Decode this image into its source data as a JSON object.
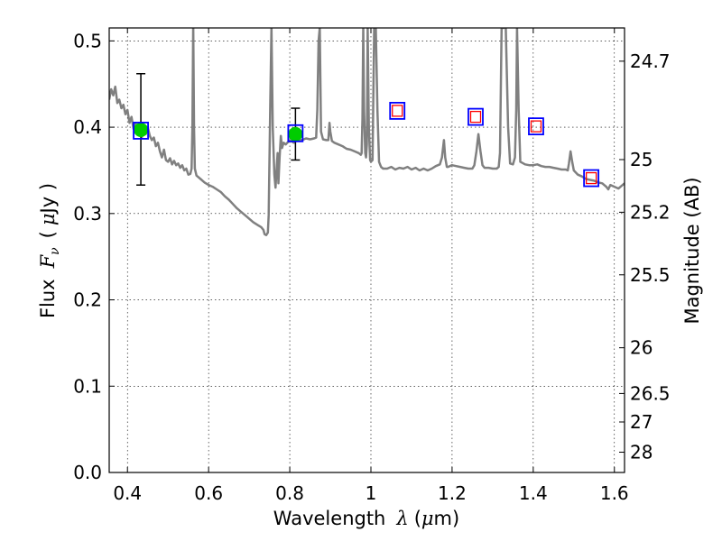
{
  "chart_data": {
    "type": "scatter",
    "xlabel": "Wavelength",
    "xlabel_symbol": "λ",
    "xlabel_unit_prefix": "(",
    "xlabel_unit_mu": "μ",
    "xlabel_unit_suffix": "m)",
    "ylabel_prefix": "Flux",
    "ylabel_symbol": "F",
    "ylabel_sub": "ν",
    "ylabel_unit_open": "(",
    "ylabel_unit_mu": "μ",
    "ylabel_unit_rest": "Jy )",
    "right_ylabel": "Magnitude (AB)",
    "xlim": [
      0.355,
      1.625
    ],
    "ylim": [
      0.0,
      0.515
    ],
    "grid": true,
    "x_ticks": [
      {
        "value": 0.4,
        "label": "0.4"
      },
      {
        "value": 0.6,
        "label": "0.6"
      },
      {
        "value": 0.8,
        "label": "0.8"
      },
      {
        "value": 1.0,
        "label": "1"
      },
      {
        "value": 1.2,
        "label": "1.2"
      },
      {
        "value": 1.4,
        "label": "1.4"
      },
      {
        "value": 1.6,
        "label": "1.6"
      }
    ],
    "y_ticks": [
      {
        "value": 0.0,
        "label": "0.0"
      },
      {
        "value": 0.1,
        "label": "0.1"
      },
      {
        "value": 0.2,
        "label": "0.2"
      },
      {
        "value": 0.3,
        "label": "0.3"
      },
      {
        "value": 0.4,
        "label": "0.4"
      },
      {
        "value": 0.5,
        "label": "0.5"
      }
    ],
    "right_ticks": [
      {
        "flux": 0.4765,
        "label": "24.7"
      },
      {
        "flux": 0.3625,
        "label": "25"
      },
      {
        "flux": 0.3015,
        "label": "25.2"
      },
      {
        "flux": 0.229,
        "label": "25.5"
      },
      {
        "flux": 0.1445,
        "label": "26"
      },
      {
        "flux": 0.0915,
        "label": "26.5"
      },
      {
        "flux": 0.0585,
        "label": "27"
      },
      {
        "flux": 0.0235,
        "label": "28"
      }
    ],
    "series": [
      {
        "kind": "model-spectrum",
        "color": "#808080",
        "points": [
          [
            0.355,
            0.432
          ],
          [
            0.36,
            0.444
          ],
          [
            0.365,
            0.437
          ],
          [
            0.37,
            0.447
          ],
          [
            0.375,
            0.428
          ],
          [
            0.38,
            0.432
          ],
          [
            0.385,
            0.422
          ],
          [
            0.39,
            0.426
          ],
          [
            0.395,
            0.415
          ],
          [
            0.4,
            0.42
          ],
          [
            0.405,
            0.405
          ],
          [
            0.41,
            0.412
          ],
          [
            0.415,
            0.398
          ],
          [
            0.42,
            0.405
          ],
          [
            0.425,
            0.392
          ],
          [
            0.43,
            0.398
          ],
          [
            0.435,
            0.388
          ],
          [
            0.44,
            0.395
          ],
          [
            0.445,
            0.392
          ],
          [
            0.45,
            0.4
          ],
          [
            0.455,
            0.39
          ],
          [
            0.46,
            0.385
          ],
          [
            0.465,
            0.388
          ],
          [
            0.47,
            0.378
          ],
          [
            0.475,
            0.382
          ],
          [
            0.48,
            0.372
          ],
          [
            0.485,
            0.365
          ],
          [
            0.49,
            0.374
          ],
          [
            0.495,
            0.362
          ],
          [
            0.5,
            0.36
          ],
          [
            0.505,
            0.364
          ],
          [
            0.51,
            0.357
          ],
          [
            0.515,
            0.361
          ],
          [
            0.52,
            0.356
          ],
          [
            0.525,
            0.358
          ],
          [
            0.53,
            0.353
          ],
          [
            0.535,
            0.356
          ],
          [
            0.54,
            0.35
          ],
          [
            0.545,
            0.352
          ],
          [
            0.55,
            0.345
          ],
          [
            0.555,
            0.346
          ],
          [
            0.558,
            0.352
          ],
          [
            0.56,
            0.4
          ],
          [
            0.562,
            0.52
          ],
          [
            0.564,
            0.4
          ],
          [
            0.566,
            0.352
          ],
          [
            0.57,
            0.344
          ],
          [
            0.58,
            0.34
          ],
          [
            0.59,
            0.336
          ],
          [
            0.6,
            0.333
          ],
          [
            0.61,
            0.331
          ],
          [
            0.62,
            0.328
          ],
          [
            0.63,
            0.325
          ],
          [
            0.64,
            0.32
          ],
          [
            0.65,
            0.316
          ],
          [
            0.66,
            0.311
          ],
          [
            0.67,
            0.306
          ],
          [
            0.68,
            0.302
          ],
          [
            0.69,
            0.298
          ],
          [
            0.7,
            0.294
          ],
          [
            0.71,
            0.29
          ],
          [
            0.72,
            0.287
          ],
          [
            0.73,
            0.284
          ],
          [
            0.735,
            0.281
          ],
          [
            0.738,
            0.276
          ],
          [
            0.742,
            0.275
          ],
          [
            0.746,
            0.278
          ],
          [
            0.748,
            0.298
          ],
          [
            0.752,
            0.43
          ],
          [
            0.755,
            0.515
          ],
          [
            0.758,
            0.4
          ],
          [
            0.762,
            0.345
          ],
          [
            0.765,
            0.33
          ],
          [
            0.768,
            0.355
          ],
          [
            0.77,
            0.37
          ],
          [
            0.772,
            0.335
          ],
          [
            0.775,
            0.365
          ],
          [
            0.778,
            0.39
          ],
          [
            0.781,
            0.376
          ],
          [
            0.785,
            0.382
          ],
          [
            0.79,
            0.38
          ],
          [
            0.8,
            0.385
          ],
          [
            0.81,
            0.382
          ],
          [
            0.82,
            0.386
          ],
          [
            0.83,
            0.385
          ],
          [
            0.84,
            0.387
          ],
          [
            0.85,
            0.386
          ],
          [
            0.86,
            0.387
          ],
          [
            0.865,
            0.388
          ],
          [
            0.868,
            0.42
          ],
          [
            0.871,
            0.5
          ],
          [
            0.874,
            0.515
          ],
          [
            0.877,
            0.395
          ],
          [
            0.882,
            0.386
          ],
          [
            0.89,
            0.385
          ],
          [
            0.895,
            0.385
          ],
          [
            0.898,
            0.405
          ],
          [
            0.9,
            0.395
          ],
          [
            0.904,
            0.384
          ],
          [
            0.91,
            0.382
          ],
          [
            0.92,
            0.38
          ],
          [
            0.93,
            0.378
          ],
          [
            0.94,
            0.375
          ],
          [
            0.95,
            0.374
          ],
          [
            0.96,
            0.372
          ],
          [
            0.97,
            0.37
          ],
          [
            0.975,
            0.368
          ],
          [
            0.977,
            0.37
          ],
          [
            0.979,
            0.41
          ],
          [
            0.981,
            0.515
          ],
          [
            0.983,
            0.42
          ],
          [
            0.986,
            0.37
          ],
          [
            0.988,
            0.365
          ],
          [
            0.99,
            0.38
          ],
          [
            0.992,
            0.515
          ],
          [
            0.995,
            0.4
          ],
          [
            0.998,
            0.362
          ],
          [
            1.0,
            0.36
          ],
          [
            1.004,
            0.362
          ],
          [
            1.008,
            0.515
          ],
          [
            1.012,
            0.515
          ],
          [
            1.016,
            0.42
          ],
          [
            1.02,
            0.36
          ],
          [
            1.025,
            0.354
          ],
          [
            1.03,
            0.352
          ],
          [
            1.04,
            0.352
          ],
          [
            1.05,
            0.354
          ],
          [
            1.06,
            0.351
          ],
          [
            1.07,
            0.353
          ],
          [
            1.08,
            0.352
          ],
          [
            1.09,
            0.354
          ],
          [
            1.1,
            0.351
          ],
          [
            1.11,
            0.353
          ],
          [
            1.12,
            0.35
          ],
          [
            1.13,
            0.352
          ],
          [
            1.14,
            0.35
          ],
          [
            1.15,
            0.352
          ],
          [
            1.16,
            0.355
          ],
          [
            1.17,
            0.357
          ],
          [
            1.175,
            0.365
          ],
          [
            1.18,
            0.385
          ],
          [
            1.183,
            0.365
          ],
          [
            1.187,
            0.354
          ],
          [
            1.19,
            0.354
          ],
          [
            1.2,
            0.356
          ],
          [
            1.21,
            0.355
          ],
          [
            1.22,
            0.354
          ],
          [
            1.23,
            0.353
          ],
          [
            1.24,
            0.352
          ],
          [
            1.25,
            0.352
          ],
          [
            1.255,
            0.356
          ],
          [
            1.26,
            0.372
          ],
          [
            1.265,
            0.392
          ],
          [
            1.27,
            0.372
          ],
          [
            1.275,
            0.356
          ],
          [
            1.28,
            0.353
          ],
          [
            1.29,
            0.353
          ],
          [
            1.3,
            0.352
          ],
          [
            1.31,
            0.352
          ],
          [
            1.315,
            0.354
          ],
          [
            1.318,
            0.37
          ],
          [
            1.322,
            0.515
          ],
          [
            1.327,
            0.515
          ],
          [
            1.332,
            0.52
          ],
          [
            1.338,
            0.4
          ],
          [
            1.343,
            0.358
          ],
          [
            1.35,
            0.357
          ],
          [
            1.355,
            0.365
          ],
          [
            1.358,
            0.42
          ],
          [
            1.36,
            0.515
          ],
          [
            1.364,
            0.42
          ],
          [
            1.368,
            0.36
          ],
          [
            1.372,
            0.359
          ],
          [
            1.38,
            0.357
          ],
          [
            1.39,
            0.356
          ],
          [
            1.4,
            0.356
          ],
          [
            1.41,
            0.357
          ],
          [
            1.42,
            0.355
          ],
          [
            1.43,
            0.354
          ],
          [
            1.44,
            0.354
          ],
          [
            1.45,
            0.353
          ],
          [
            1.46,
            0.352
          ],
          [
            1.47,
            0.351
          ],
          [
            1.48,
            0.351
          ],
          [
            1.485,
            0.35
          ],
          [
            1.488,
            0.358
          ],
          [
            1.492,
            0.372
          ],
          [
            1.496,
            0.36
          ],
          [
            1.5,
            0.35
          ],
          [
            1.51,
            0.345
          ],
          [
            1.52,
            0.343
          ],
          [
            1.53,
            0.34
          ],
          [
            1.54,
            0.339
          ],
          [
            1.55,
            0.338
          ],
          [
            1.56,
            0.336
          ],
          [
            1.57,
            0.335
          ],
          [
            1.575,
            0.333
          ],
          [
            1.58,
            0.331
          ],
          [
            1.585,
            0.328
          ],
          [
            1.59,
            0.333
          ],
          [
            1.6,
            0.331
          ],
          [
            1.61,
            0.329
          ],
          [
            1.62,
            0.333
          ],
          [
            1.625,
            0.335
          ]
        ]
      },
      {
        "kind": "observed-photometry",
        "color": "#00cc00",
        "points": [
          {
            "x": 0.433,
            "y": 0.397,
            "yerr_lo": 0.064,
            "yerr_hi": 0.065
          },
          {
            "x": 0.814,
            "y": 0.392,
            "yerr_lo": 0.03,
            "yerr_hi": 0.03
          }
        ]
      },
      {
        "kind": "model-photometry-blue",
        "color": "#0000ff",
        "points": [
          {
            "x": 0.433,
            "y": 0.396
          },
          {
            "x": 0.814,
            "y": 0.393
          },
          {
            "x": 1.065,
            "y": 0.419
          },
          {
            "x": 1.258,
            "y": 0.412
          },
          {
            "x": 1.407,
            "y": 0.401
          },
          {
            "x": 1.543,
            "y": 0.341
          }
        ]
      },
      {
        "kind": "model-photometry-red",
        "color": "#ff0000",
        "points": [
          {
            "x": 1.065,
            "y": 0.419
          },
          {
            "x": 1.258,
            "y": 0.412
          },
          {
            "x": 1.407,
            "y": 0.401
          },
          {
            "x": 1.543,
            "y": 0.341
          }
        ]
      }
    ]
  }
}
